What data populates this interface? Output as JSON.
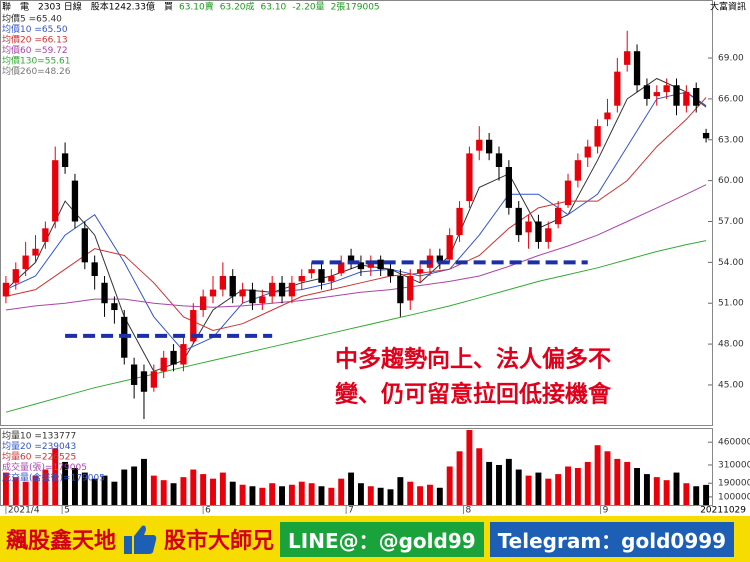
{
  "header": [
    {
      "text": "聯　電　2303 日線　股本1242.33億　買",
      "color": "#000000"
    },
    {
      "text": "63.10賣",
      "color": "#1a9a1a"
    },
    {
      "text": "63.20成",
      "color": "#1a9a1a"
    },
    {
      "text": "63.10",
      "color": "#1a9a1a"
    },
    {
      "text": "-2.20量",
      "color": "#1a9a1a"
    },
    {
      "text": "2張179005",
      "color": "#1a9a1a"
    }
  ],
  "source": "大富資訊",
  "chart_data": {
    "type": "candlestick",
    "price_legend": [
      {
        "text": "均價5 =65.40",
        "color": "#333333"
      },
      {
        "text": "均價10 =65.50",
        "color": "#3355cc"
      },
      {
        "text": "均價20 =66.13",
        "color": "#cc3333"
      },
      {
        "text": "均價60 =59.72",
        "color": "#aa44aa"
      },
      {
        "text": "均價130=55.61",
        "color": "#33aa33"
      },
      {
        "text": "均價260=48.26",
        "color": "#777777"
      }
    ],
    "xlim": [
      -0.6,
      71.6
    ],
    "xticks": [
      {
        "value": 0,
        "label": "2021/4"
      },
      {
        "value": 5.7,
        "label": "5"
      },
      {
        "value": 20,
        "label": "6"
      },
      {
        "value": 34.5,
        "label": "7"
      },
      {
        "value": 46.4,
        "label": "8"
      },
      {
        "value": 60.3,
        "label": "9"
      }
    ],
    "end_date": "20211029",
    "ylim": [
      42.06,
      73.26
    ],
    "yticks": [
      {
        "value": 45,
        "label": "45.00"
      },
      {
        "value": 48,
        "label": "48.00"
      },
      {
        "value": 51,
        "label": "51.00"
      },
      {
        "value": 54,
        "label": "54.00"
      },
      {
        "value": 57,
        "label": "57.00"
      },
      {
        "value": 60,
        "label": "60.00"
      },
      {
        "value": 63,
        "label": "63.00"
      },
      {
        "value": 66,
        "label": "66.00"
      },
      {
        "value": 69,
        "label": "69.00"
      }
    ],
    "up_color": "#e8000b",
    "down_color": "#000000",
    "open": [
      51.5,
      52.5,
      53.5,
      54.5,
      55.5,
      57,
      62,
      60,
      56.5,
      54,
      52.5,
      51,
      50,
      46.5,
      46,
      44.8,
      46,
      47.5,
      46.5,
      48.2,
      50.5,
      51.5,
      52,
      53,
      51.5,
      52,
      51,
      51.5,
      52.5,
      51.5,
      52.6,
      53.2,
      53.5,
      52.6,
      53.2,
      54.5,
      54,
      53.6,
      54.2,
      53.5,
      53,
      51.2,
      53.2,
      53.6,
      54.5,
      54.2,
      56,
      58.5,
      62.2,
      63,
      62,
      61,
      58,
      56.2,
      57,
      55.5,
      56.8,
      58.2,
      60,
      61.7,
      62.5,
      64.5,
      65.5,
      68.5,
      69.5,
      67,
      66.2,
      66.5,
      67,
      65.5,
      66.8,
      63.5
    ],
    "high": [
      53,
      54,
      55.5,
      56,
      57,
      62.5,
      62.8,
      60.5,
      57,
      54.5,
      53,
      51.5,
      50.5,
      47,
      46.5,
      46.5,
      47.5,
      48,
      48.5,
      51,
      52,
      53,
      54,
      53.5,
      52.5,
      52.5,
      52,
      53,
      53,
      53,
      53.5,
      54,
      54,
      53.5,
      54.5,
      55,
      54.5,
      54.5,
      54.5,
      54,
      53.5,
      53.5,
      54,
      55,
      55,
      56.5,
      58.5,
      62.5,
      64,
      63.5,
      62.5,
      61.5,
      58.5,
      57.5,
      57.5,
      57,
      58.5,
      60.5,
      62,
      63,
      64.5,
      66,
      69,
      71,
      70,
      67.5,
      67,
      67.5,
      67.5,
      67,
      67.2,
      63.8
    ],
    "low": [
      51,
      52,
      53,
      54,
      55,
      56.5,
      60.5,
      56.5,
      53.5,
      52,
      50,
      49.5,
      46.5,
      44,
      42.5,
      44.5,
      45.5,
      46,
      46,
      48,
      50,
      51,
      51.5,
      51,
      51,
      50.5,
      50.5,
      51,
      51,
      51,
      52,
      52.8,
      52,
      52,
      53,
      53.5,
      53,
      53,
      53,
      52.5,
      50,
      50.5,
      52.5,
      53,
      53.5,
      54,
      55.5,
      58,
      61.5,
      61.5,
      60,
      57.5,
      55.5,
      55,
      55,
      55,
      56.5,
      58,
      59.5,
      61,
      62,
      64,
      65,
      68,
      66.5,
      65.5,
      65.5,
      66,
      64.8,
      65,
      65,
      62.8
    ],
    "close": [
      52.5,
      53.5,
      54.5,
      55,
      56.5,
      61.5,
      61,
      57,
      54,
      53,
      51,
      50.5,
      47,
      45,
      44.5,
      46,
      47,
      46.5,
      48,
      50.5,
      51.5,
      52,
      53,
      51.5,
      52,
      51,
      51.5,
      52.5,
      51.5,
      52.5,
      53,
      53.5,
      52.5,
      53,
      54,
      54,
      53.5,
      54,
      53.5,
      53,
      51,
      53,
      53.5,
      54.5,
      54,
      56,
      58,
      62,
      63,
      62,
      61,
      58,
      56,
      57,
      55.5,
      56.5,
      58,
      60,
      61.5,
      62.5,
      64,
      65,
      68,
      69.5,
      67,
      66,
      66.5,
      67,
      65.5,
      66.5,
      65.5,
      63.1
    ],
    "ma_x": [
      0,
      3,
      6,
      9,
      12,
      15,
      18,
      21,
      24,
      27,
      30,
      33,
      36,
      39,
      42,
      45,
      48,
      51,
      54,
      57,
      60,
      63,
      66,
      69,
      71
    ],
    "ma_lines": [
      {
        "color": "#333333",
        "values": [
          52,
          54,
          58.5,
          56,
          50,
          46,
          46.8,
          50.5,
          52,
          51.8,
          52.5,
          53,
          53.8,
          53.5,
          52.5,
          54.5,
          59.5,
          60.5,
          56.5,
          57.5,
          61.5,
          66,
          67.5,
          66.5,
          65.4
        ]
      },
      {
        "color": "#3355cc",
        "values": [
          52,
          53,
          56,
          57.5,
          54,
          50,
          47.5,
          48.5,
          51,
          51.8,
          52,
          52.5,
          53.3,
          53.5,
          53,
          53.5,
          56,
          59,
          59,
          57.5,
          59,
          62.5,
          66,
          66.5,
          65.5
        ]
      },
      {
        "color": "#cc3333",
        "values": [
          51.5,
          52,
          53.5,
          55,
          54.5,
          52.5,
          50,
          49,
          49.5,
          50.5,
          51.5,
          52,
          52.5,
          53,
          53.2,
          53.5,
          54.5,
          56.5,
          58,
          58.5,
          58.5,
          60,
          62.5,
          64.5,
          66.1
        ]
      },
      {
        "color": "#aa44aa",
        "values": [
          50.5,
          50.8,
          51,
          51.3,
          51.3,
          51,
          50.8,
          50.7,
          50.8,
          51,
          51.2,
          51.5,
          51.8,
          52,
          52.3,
          52.6,
          53,
          53.7,
          54.5,
          55.2,
          56,
          57,
          58,
          59,
          59.7
        ]
      },
      {
        "color": "#33aa33",
        "values": [
          43,
          43.6,
          44.2,
          44.8,
          45.3,
          45.8,
          46.3,
          46.8,
          47.3,
          47.8,
          48.3,
          48.8,
          49.3,
          49.8,
          50.3,
          50.8,
          51.4,
          52,
          52.6,
          53.1,
          53.6,
          54.2,
          54.8,
          55.3,
          55.6
        ]
      }
    ],
    "levels": [
      {
        "value": 48.6,
        "x": [
          6,
          27
        ],
        "color": "#1c2fa8"
      },
      {
        "value": 54,
        "x": [
          31,
          59
        ],
        "color": "#1c2fa8"
      }
    ],
    "annotation": [
      "中多趨勢向上、法人偏多不",
      "變、仍可留意拉回低接機會"
    ],
    "annotation_color": "#e0001b",
    "volume_legend": [
      {
        "text": "均量10 =133777",
        "color": "#333333"
      },
      {
        "text": "均量20 =239043",
        "color": "#3355cc"
      },
      {
        "text": "均量60 =226525",
        "color": "#cc3333"
      },
      {
        "text": "成交量(張)=179005",
        "color": "#aa44aa"
      },
      {
        "text": "成交量(含盤後)=179005",
        "color": "#3355cc"
      }
    ],
    "vlim": [
      46700,
      546700
    ],
    "vticks": [
      100000,
      190000,
      310000,
      460000
    ],
    "volume": [
      260000,
      230000,
      200000,
      240000,
      280000,
      420000,
      330000,
      290000,
      260000,
      220000,
      240000,
      200000,
      280000,
      300000,
      350000,
      240000,
      210000,
      190000,
      230000,
      280000,
      250000,
      220000,
      260000,
      200000,
      180000,
      170000,
      160000,
      190000,
      170000,
      180000,
      200000,
      190000,
      170000,
      160000,
      220000,
      260000,
      190000,
      170000,
      160000,
      150000,
      230000,
      200000,
      170000,
      180000,
      160000,
      300000,
      400000,
      540000,
      420000,
      330000,
      310000,
      350000,
      280000,
      240000,
      260000,
      220000,
      250000,
      300000,
      290000,
      330000,
      440000,
      400000,
      350000,
      330000,
      290000,
      250000,
      230000,
      210000,
      260000,
      190000,
      170000,
      179005
    ]
  },
  "banner": {
    "brand": "飆股鑫天地",
    "name": "股市大師兄",
    "line": "LINE@：@gold99",
    "telegram": "Telegram：gold0999"
  }
}
